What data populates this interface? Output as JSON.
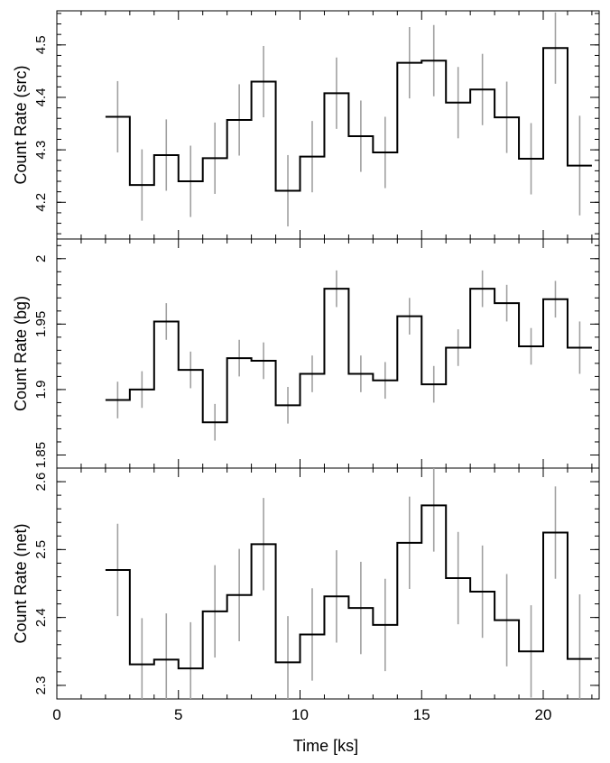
{
  "chart_data": {
    "type": "line",
    "xlabel": "Time [ks]",
    "xlim": [
      0,
      22.3
    ],
    "xticks": [
      "0",
      "5",
      "10",
      "15",
      "20"
    ],
    "x": [
      2.5,
      3.5,
      4.5,
      5.5,
      6.5,
      7.5,
      8.5,
      9.5,
      10.5,
      11.5,
      12.5,
      13.5,
      14.5,
      15.5,
      16.5,
      17.5,
      18.5,
      19.5,
      20.5,
      21.5
    ],
    "bin_width": 1,
    "panels": [
      {
        "ylabel": "Count Rate (src)",
        "ylim": [
          4.13,
          4.565
        ],
        "yticks": [
          "4.2",
          "4.3",
          "4.4",
          "4.5"
        ],
        "values": [
          4.363,
          4.233,
          4.29,
          4.24,
          4.284,
          4.357,
          4.43,
          4.222,
          4.287,
          4.408,
          4.326,
          4.295,
          4.466,
          4.47,
          4.39,
          4.415,
          4.362,
          4.283,
          4.494,
          4.27
        ],
        "errors": [
          0.068,
          0.068,
          0.068,
          0.068,
          0.068,
          0.068,
          0.068,
          0.068,
          0.068,
          0.068,
          0.068,
          0.068,
          0.068,
          0.068,
          0.068,
          0.068,
          0.068,
          0.068,
          0.068,
          0.095
        ]
      },
      {
        "ylabel": "Count Rate (bg)",
        "ylim": [
          1.84,
          2.015
        ],
        "yticks": [
          "1.85",
          "1.9",
          "1.95",
          "2"
        ],
        "values": [
          1.892,
          1.9,
          1.952,
          1.915,
          1.875,
          1.924,
          1.922,
          1.888,
          1.912,
          1.977,
          1.912,
          1.907,
          1.956,
          1.904,
          1.932,
          1.977,
          1.966,
          1.933,
          1.969,
          1.932
        ],
        "errors": [
          0.014,
          0.014,
          0.014,
          0.014,
          0.014,
          0.014,
          0.014,
          0.014,
          0.014,
          0.014,
          0.014,
          0.014,
          0.014,
          0.014,
          0.014,
          0.014,
          0.014,
          0.014,
          0.014,
          0.02
        ]
      },
      {
        "ylabel": "Count Rate (net)",
        "ylim": [
          2.28,
          2.62
        ],
        "yticks": [
          "2.3",
          "2.4",
          "2.5",
          "2.6"
        ],
        "values": [
          2.47,
          2.331,
          2.338,
          2.325,
          2.409,
          2.433,
          2.508,
          2.334,
          2.375,
          2.431,
          2.414,
          2.389,
          2.51,
          2.565,
          2.458,
          2.438,
          2.396,
          2.35,
          2.525,
          2.339
        ],
        "errors": [
          0.068,
          0.068,
          0.068,
          0.068,
          0.068,
          0.068,
          0.068,
          0.068,
          0.068,
          0.068,
          0.068,
          0.068,
          0.068,
          0.068,
          0.068,
          0.068,
          0.068,
          0.068,
          0.068,
          0.095
        ]
      }
    ],
    "colors": {
      "step_line": "#000000",
      "error_bar": "#a0a0a0",
      "frame": "#000000"
    },
    "grid": false
  }
}
